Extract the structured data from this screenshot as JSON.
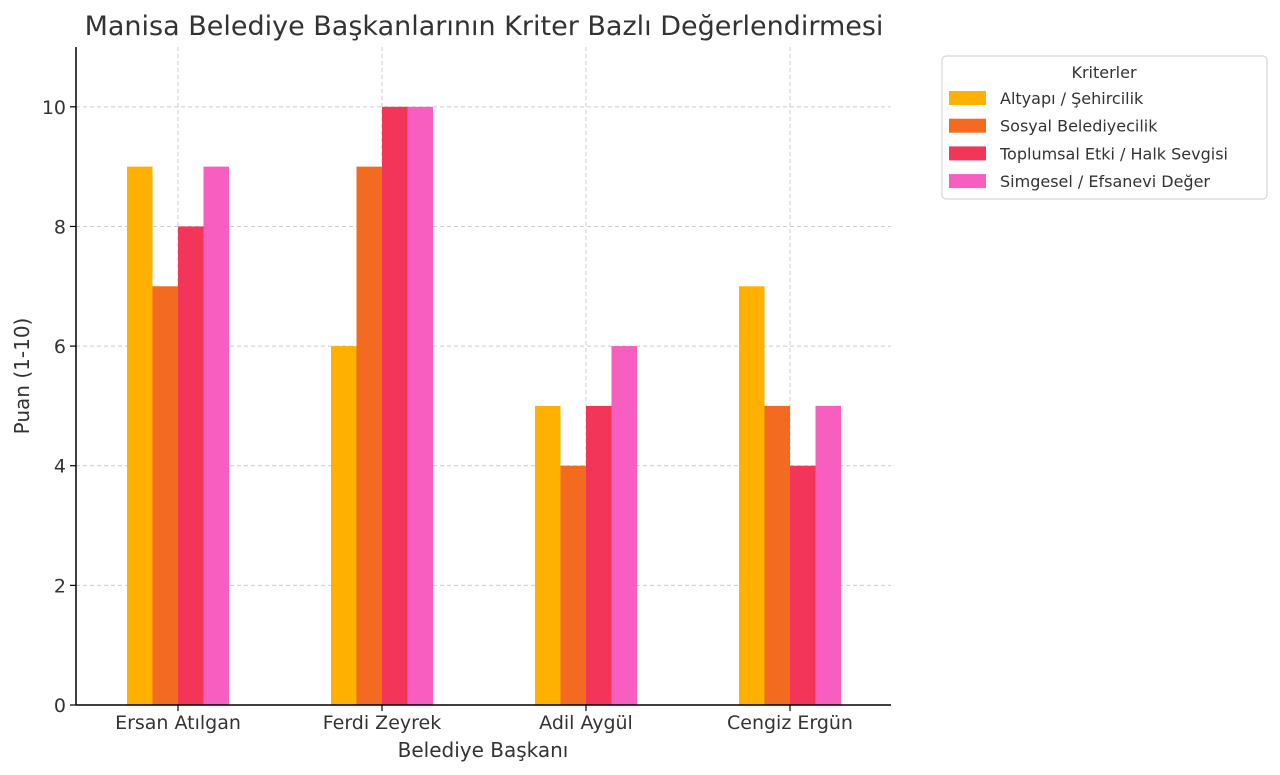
{
  "chart_data": {
    "type": "bar",
    "title": "Manisa Belediye Başkanlarının Kriter Bazlı Değerlendirmesi",
    "xlabel": "Belediye Başkanı",
    "ylabel": "Puan (1-10)",
    "ylim": [
      0,
      11
    ],
    "yticks": [
      "0",
      "2",
      "4",
      "6",
      "8",
      "10"
    ],
    "grid": true,
    "legend": {
      "title": "Kriterler",
      "placement": "outside-top-right"
    },
    "categories": [
      "Ersan Atılgan",
      "Ferdi Zeyrek",
      "Adil Aygül",
      "Cengiz Ergün"
    ],
    "series": [
      {
        "name": "Altyapı / Şehircilik",
        "color": "#FFB000",
        "values": [
          9,
          6,
          5,
          7
        ]
      },
      {
        "name": "Sosyal Belediyecilik",
        "color": "#F26B21",
        "values": [
          7,
          9,
          4,
          5
        ]
      },
      {
        "name": "Toplumsal Etki / Halk Sevgisi",
        "color": "#F23558",
        "values": [
          8,
          10,
          5,
          4
        ]
      },
      {
        "name": "Simgesel / Efsanevi Değer",
        "color": "#F85DC0",
        "values": [
          9,
          10,
          6,
          5
        ]
      }
    ]
  }
}
